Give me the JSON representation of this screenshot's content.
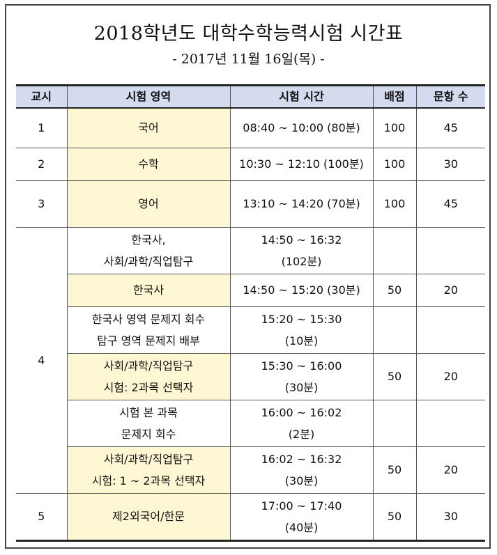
{
  "title": "2018학년도 대학수학능력시험 시간표",
  "subtitle": "- 2017년 11월 16일(목) -",
  "table": {
    "headers": [
      "교시",
      "시험 영역",
      "시험 시간",
      "배점",
      "문항 수"
    ],
    "rows": [
      {
        "period": "1",
        "subject": "국어",
        "time": "08:40 ~ 10:00 (80분)",
        "score": "100",
        "items": "45"
      },
      {
        "period": "2",
        "subject": "수학",
        "time": "10:30 ~ 12:10 (100분)",
        "score": "100",
        "items": "30"
      },
      {
        "period": "3",
        "subject": "영어",
        "time": "13:10 ~ 14:20 (70분)",
        "score": "100",
        "items": "45"
      },
      {
        "period": "4",
        "subject": "한국사,\n사회/과학/직업탐구",
        "time": "14:50 ~ 16:32\n(102분)",
        "score": "",
        "items": ""
      },
      {
        "period": "",
        "subject": "한국사",
        "time": "14:50 ~ 15:20 (30분)",
        "score": "50",
        "items": "20"
      },
      {
        "period": "",
        "subject": "한국사 영역 문제지 회수\n탐구 영역 문제지 배부",
        "time": "15:20 ~ 15:30\n(10분)",
        "score": "",
        "items": ""
      },
      {
        "period": "",
        "subject": "사회/과학/직업탐구\n시험: 2과목 선택자",
        "time": "15:30 ~ 16:00\n(30분)",
        "score": "50",
        "items": "20"
      },
      {
        "period": "",
        "subject": "시험 본 과목\n문제지 회수",
        "time": "16:00 ~ 16:02\n(2분)",
        "score": "",
        "items": ""
      },
      {
        "period": "",
        "subject": "사회/과학/직업탐구\n시험: 1 ~ 2과목 선택자",
        "time": "16:02 ~ 16:32\n(30분)",
        "score": "50",
        "items": "20"
      },
      {
        "period": "5",
        "subject": "제2외국어/한문",
        "time": "17:00 ~ 17:40\n(40분)",
        "score": "50",
        "items": "30"
      }
    ]
  }
}
